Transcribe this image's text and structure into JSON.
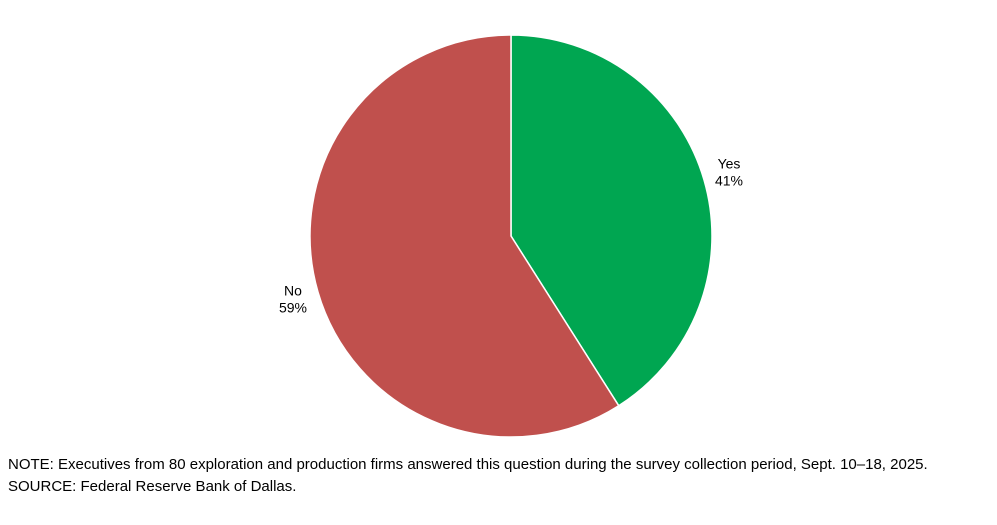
{
  "chart_data": {
    "type": "pie",
    "title": "",
    "start_angle_deg": -90,
    "direction": "clockwise",
    "legend": "none",
    "label_style": "label and percent outside slice",
    "slices": [
      {
        "label": "Yes",
        "value": 41,
        "percent_label": "41%",
        "color": "#00a651"
      },
      {
        "label": "No",
        "value": 59,
        "percent_label": "59%",
        "color": "#c0504d"
      }
    ]
  },
  "colors": {
    "background": "#ffffff",
    "slice_border": "#ffffff",
    "text": "#000000"
  },
  "note": {
    "text": "NOTE: Executives from 80 exploration and production firms answered this question during the survey collection period, Sept. 10–18, 2025.",
    "source": "SOURCE: Federal Reserve Bank of Dallas."
  }
}
